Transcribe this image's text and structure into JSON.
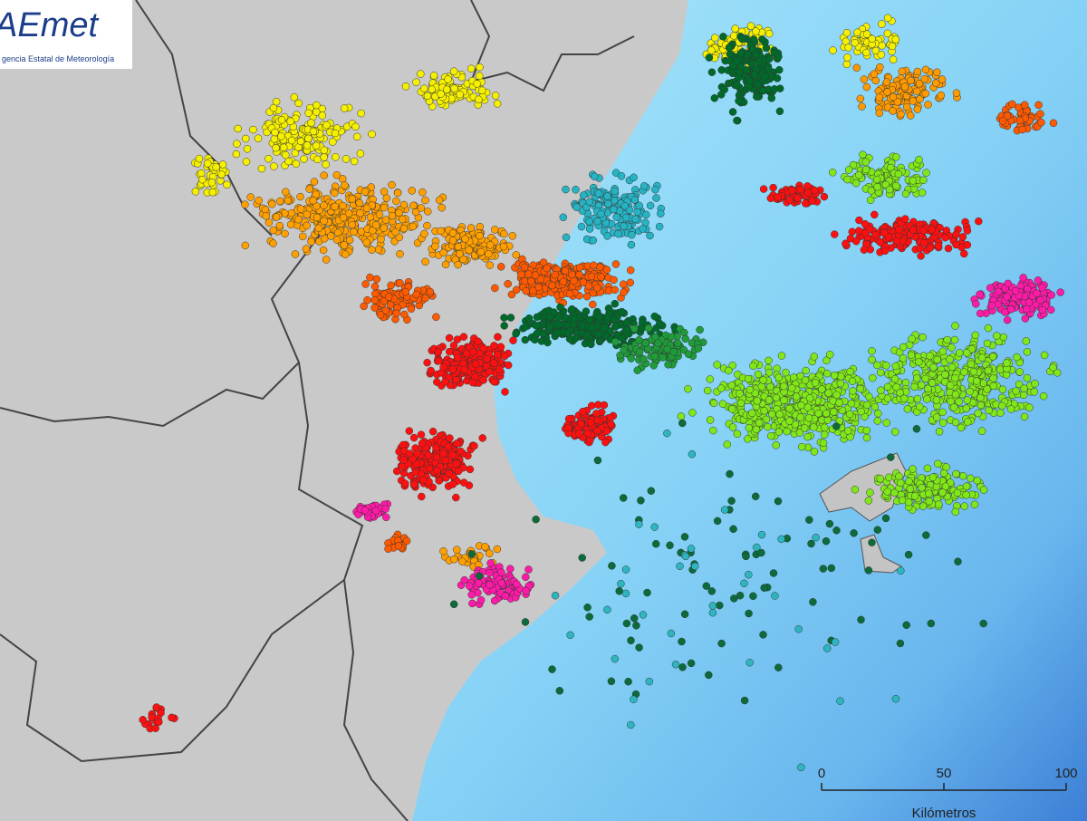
{
  "logo": {
    "brand": "AEmet",
    "agency": "gencia Estatal de Meteorología"
  },
  "scale_bar": {
    "ticks": [
      0,
      50,
      100
    ],
    "unit": "Kilómetros"
  }
}
